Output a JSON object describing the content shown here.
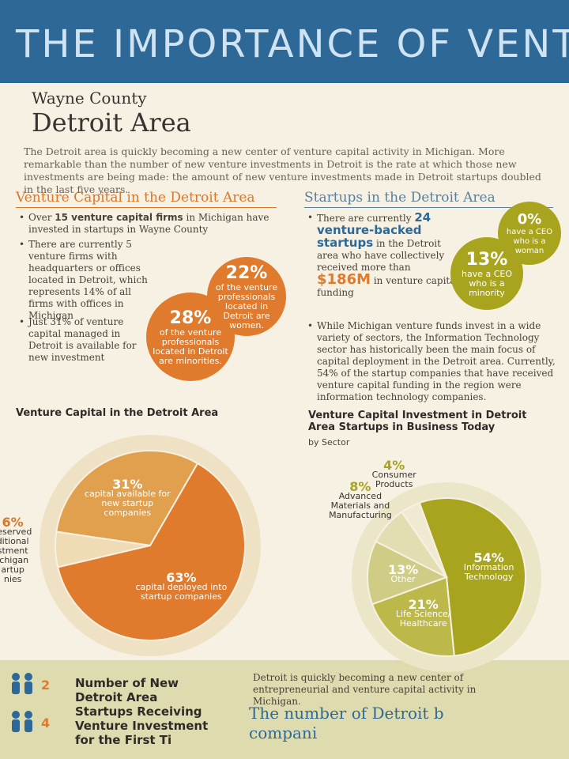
{
  "header": {
    "title": "THE IMPORTANCE OF VENTUR",
    "county": "Wayne County",
    "area": "Detroit Area"
  },
  "intro": "The Detroit area is quickly becoming a new center of venture capital activity in Michigan. More remarkable than the number of new venture investments in Detroit is the rate at which those new investments are being made: the amount of new venture investments made in Detroit startups doubled in the last five years.",
  "left": {
    "heading": "Venture Capital in the Detroit Area",
    "bullets": [
      {
        "pre": "Over ",
        "bold": "15 venture capital firms",
        "post": " in Michigan have invested in startups in Wayne County"
      },
      {
        "text": "There are currently 5 venture firms with headquarters or offices located in Detroit, which represents 14% of all firms with offices in Michigan"
      },
      {
        "text": "Just 31% of venture capital managed in Detroit is available for new investment"
      }
    ],
    "circles": [
      {
        "value": "28%",
        "text": "of the venture professionals located in Detroit are minorities."
      },
      {
        "value": "22%",
        "text": "of the venture professionals located in Detroit are women."
      }
    ]
  },
  "right": {
    "heading": "Startups in the Detroit Area",
    "bullets": [
      {
        "pre": "There are currently ",
        "bold": "24 venture-backed startups",
        "mid": " in the Detroit area who have collectively received more than ",
        "big": "$186M",
        "post": " in venture capital funding"
      },
      {
        "text": "While Michigan venture funds invest in a wide variety of sectors, the Information Technology sector has historically been the main focus of capital deployment in the Detroit area. Currently, 54% of the startup companies that have received venture capital funding in the region were information technology companies."
      }
    ],
    "circles": [
      {
        "value": "13%",
        "text": "have a CEO who is a minority"
      },
      {
        "value": "0%",
        "text": "have a CEO who is a woman"
      }
    ]
  },
  "chart_data": [
    {
      "type": "pie",
      "title": "Venture Capital in the Detroit Area",
      "categories": [
        "capital available for new startup companies",
        "reserved\nditional\nstment\nichigan\nartup\nnies",
        "capital deployed into startup companies"
      ],
      "values": [
        31,
        6,
        63
      ],
      "value_labels": [
        "31%",
        "6%",
        "63%"
      ],
      "colors": [
        "#e0a04e",
        "#efdcb4",
        "#e07a2c"
      ]
    },
    {
      "type": "pie",
      "title": "Venture Capital Investment in Detroit Area Startups in Business Today",
      "subtitle": "by Sector",
      "categories": [
        "Information Technology",
        "Life Science/ Healthcare",
        "Other",
        "Advanced Materials and Manufacturing",
        "Consumer Products"
      ],
      "values": [
        54,
        21,
        13,
        8,
        4
      ],
      "value_labels": [
        "54%",
        "21%",
        "13%",
        "8%",
        "4%"
      ],
      "colors": [
        "#a8a41e",
        "#bcb84a",
        "#cfcc86",
        "#e2deb2",
        "#f0ead2"
      ]
    }
  ],
  "footer": {
    "counts": [
      "2",
      "4"
    ],
    "heading": "Number of New Detroit Area Startups Receiving Venture Investment for the First Ti",
    "text": "Detroit is quickly becoming a new center of entrepreneurial and venture capital activity in Michigan.",
    "big": "The number of Detroit b",
    "big2": "compani"
  }
}
